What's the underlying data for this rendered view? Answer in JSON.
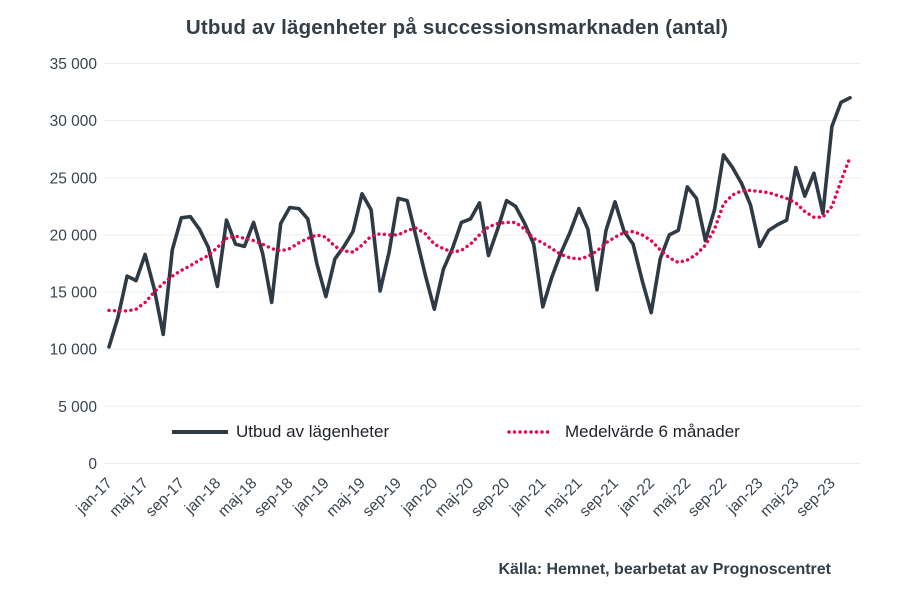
{
  "title": "Utbud av lägenheter på successionsmarknaden (antal)",
  "source": "Källa: Hemnet, bearbetat av Prognoscentret",
  "colors": {
    "line": "#2e3a45",
    "average": "#e4074f",
    "grid": "#ececec",
    "axis_text": "#39434e",
    "title_text": "#333f48"
  },
  "chart_data": {
    "type": "line",
    "title": "Utbud av lägenheter på successionsmarknaden (antal)",
    "x_start_month": "jan-17",
    "x_frequency": "monthly",
    "x_tick_labels": [
      "jan-17",
      "maj-17",
      "sep-17",
      "jan-18",
      "maj-18",
      "sep-18",
      "jan-19",
      "maj-19",
      "sep-19",
      "jan-20",
      "maj-20",
      "sep-20",
      "jan-21",
      "maj-21",
      "sep-21",
      "jan-22",
      "maj-22",
      "sep-22",
      "jan-23",
      "maj-23",
      "sep-23"
    ],
    "x_tick_every_n_months": 4,
    "y_ticks": {
      "labels": [
        "0",
        "5 000",
        "10 000",
        "15 000",
        "20 000",
        "25 000",
        "30 000",
        "35 000"
      ],
      "values": [
        0,
        5000,
        10000,
        15000,
        20000,
        25000,
        30000,
        35000
      ]
    },
    "ylim": [
      0,
      35000
    ],
    "grid": "horizontal",
    "legend_position": "bottom",
    "series": [
      {
        "name": "Utbud av lägenheter",
        "style": "solid",
        "values": [
          10200,
          12800,
          16400,
          16000,
          18300,
          15300,
          11300,
          18700,
          21500,
          21600,
          20500,
          18900,
          15500,
          21300,
          19200,
          19000,
          21100,
          18400,
          14100,
          21000,
          22400,
          22300,
          21400,
          17500,
          14600,
          17900,
          19000,
          20300,
          23600,
          22200,
          15100,
          18500,
          23200,
          23000,
          19800,
          16500,
          13500,
          17000,
          18800,
          21100,
          21400,
          22800,
          18200,
          20500,
          23000,
          22500,
          21000,
          19200,
          13700,
          16300,
          18400,
          20200,
          22300,
          20500,
          15200,
          20400,
          22900,
          20300,
          19200,
          16000,
          13200,
          17900,
          20000,
          20400,
          24200,
          23200,
          19500,
          22200,
          27000,
          25900,
          24500,
          22600,
          19000,
          20400,
          20900,
          21300,
          25900,
          23400,
          25400,
          21900,
          29500,
          31600,
          32000
        ]
      },
      {
        "name": "Medelvärde 6 månader",
        "style": "dotted",
        "values": [
          13400,
          13350,
          13350,
          13500,
          14100,
          15000,
          15750,
          16400,
          16900,
          17300,
          17800,
          18200,
          18900,
          19700,
          19900,
          19700,
          19500,
          19200,
          18800,
          18600,
          18800,
          19300,
          19700,
          20000,
          19800,
          19000,
          18600,
          18500,
          19100,
          19900,
          20100,
          20000,
          20000,
          20400,
          20600,
          20100,
          19200,
          18800,
          18500,
          18650,
          19200,
          20000,
          20700,
          21000,
          21100,
          21100,
          20500,
          19700,
          19300,
          18800,
          18300,
          18000,
          17900,
          18100,
          18600,
          19300,
          19800,
          20200,
          20300,
          20000,
          19500,
          18700,
          18000,
          17600,
          17800,
          18300,
          19100,
          20500,
          22700,
          23500,
          23850,
          23900,
          23800,
          23700,
          23450,
          23200,
          22800,
          22050,
          21550,
          21550,
          22500,
          24700,
          26800
        ]
      }
    ]
  }
}
